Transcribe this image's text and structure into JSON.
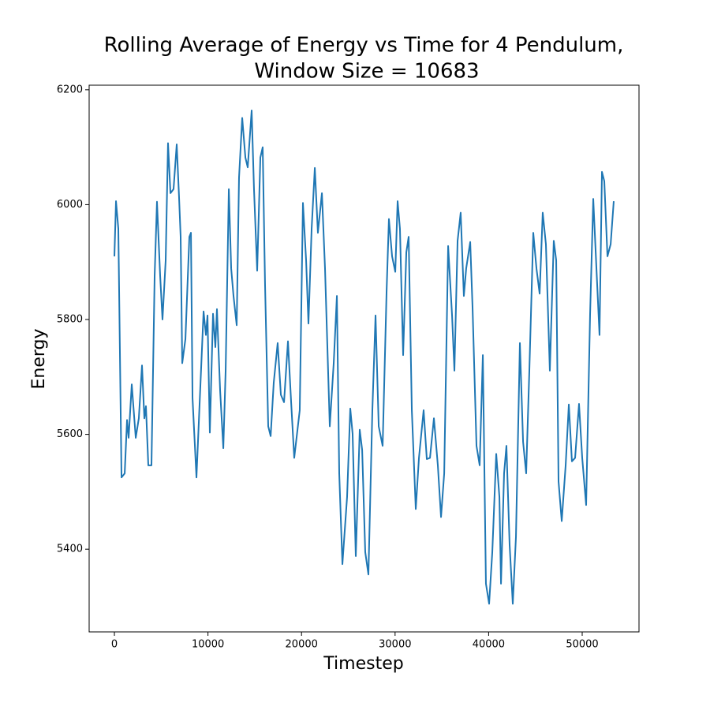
{
  "chart_data": {
    "type": "line",
    "title": [
      "Rolling Average of Energy vs Time for 4 Pendulum,",
      "Window Size = 10683"
    ],
    "xlabel": "Timestep",
    "ylabel": "Energy",
    "xlim": [
      -2700,
      56070
    ],
    "ylim": [
      5256,
      6208
    ],
    "xticks": [
      0,
      10000,
      20000,
      30000,
      40000,
      50000
    ],
    "yticks": [
      5400,
      5600,
      5800,
      6000,
      6200
    ],
    "grid": false,
    "series": [
      {
        "name": "Energy",
        "color": "#1f77b4",
        "x": [
          0,
          170,
          420,
          760,
          1100,
          1350,
          1520,
          1855,
          2280,
          2610,
          2950,
          3200,
          3370,
          3625,
          3960,
          4300,
          4550,
          4890,
          5140,
          5480,
          5730,
          5990,
          6320,
          6660,
          6910,
          7080,
          7250,
          7590,
          8010,
          8180,
          8350,
          8770,
          9100,
          9530,
          9780,
          9950,
          10200,
          10540,
          10790,
          10960,
          11300,
          11640,
          11890,
          12230,
          12480,
          12730,
          13070,
          13320,
          13660,
          14000,
          14250,
          14670,
          14920,
          15260,
          15600,
          15850,
          16100,
          16440,
          16700,
          17030,
          17450,
          17790,
          18130,
          18550,
          18890,
          19220,
          19810,
          20150,
          20490,
          20740,
          21080,
          21420,
          21750,
          22180,
          22510,
          23020,
          23440,
          23780,
          24030,
          24370,
          24870,
          25210,
          25460,
          25800,
          26220,
          26480,
          26810,
          27150,
          27570,
          27910,
          28250,
          28670,
          29090,
          29340,
          29680,
          30020,
          30270,
          30520,
          30860,
          31200,
          31450,
          31790,
          32210,
          32550,
          33050,
          33390,
          33730,
          34150,
          34570,
          34910,
          35250,
          35670,
          36090,
          36340,
          36680,
          37010,
          37350,
          37600,
          38030,
          38280,
          38700,
          39040,
          39380,
          39710,
          40050,
          40390,
          40810,
          41150,
          41320,
          41650,
          41900,
          42240,
          42580,
          42920,
          43340,
          43680,
          44010,
          44350,
          44770,
          45110,
          45450,
          45780,
          46120,
          46540,
          46960,
          47220,
          47470,
          47810,
          48230,
          48570,
          48900,
          49240,
          49660,
          50000,
          50420,
          50840,
          51180,
          51520,
          51850,
          52110,
          52360,
          52700,
          53040,
          53370
        ],
        "values": [
          5910,
          6006,
          5958,
          5525,
          5532,
          5625,
          5594,
          5687,
          5594,
          5628,
          5720,
          5628,
          5649,
          5546,
          5546,
          5876,
          6005,
          5876,
          5800,
          5903,
          6107,
          6020,
          6027,
          6105,
          6013,
          5944,
          5724,
          5766,
          5944,
          5951,
          5663,
          5525,
          5651,
          5814,
          5773,
          5807,
          5603,
          5810,
          5752,
          5818,
          5676,
          5576,
          5711,
          6027,
          5889,
          5841,
          5790,
          6047,
          6151,
          6082,
          6065,
          6164,
          6027,
          5885,
          6082,
          6100,
          5862,
          5614,
          5597,
          5690,
          5759,
          5669,
          5656,
          5762,
          5656,
          5559,
          5642,
          6003,
          5903,
          5793,
          5958,
          6064,
          5951,
          6020,
          5889,
          5614,
          5724,
          5841,
          5532,
          5374,
          5491,
          5645,
          5601,
          5388,
          5608,
          5573,
          5395,
          5356,
          5642,
          5807,
          5614,
          5580,
          5848,
          5975,
          5910,
          5883,
          6006,
          5958,
          5738,
          5917,
          5944,
          5642,
          5470,
          5559,
          5642,
          5557,
          5559,
          5628,
          5546,
          5456,
          5532,
          5928,
          5807,
          5711,
          5937,
          5986,
          5841,
          5889,
          5935,
          5821,
          5580,
          5546,
          5738,
          5340,
          5305,
          5395,
          5566,
          5491,
          5340,
          5532,
          5580,
          5408,
          5305,
          5422,
          5759,
          5587,
          5532,
          5711,
          5951,
          5889,
          5845,
          5986,
          5931,
          5711,
          5937,
          5903,
          5518,
          5449,
          5546,
          5652,
          5553,
          5559,
          5653,
          5559,
          5477,
          5807,
          6010,
          5889,
          5773,
          6057,
          6041,
          5910,
          5931,
          6006
        ]
      }
    ]
  }
}
